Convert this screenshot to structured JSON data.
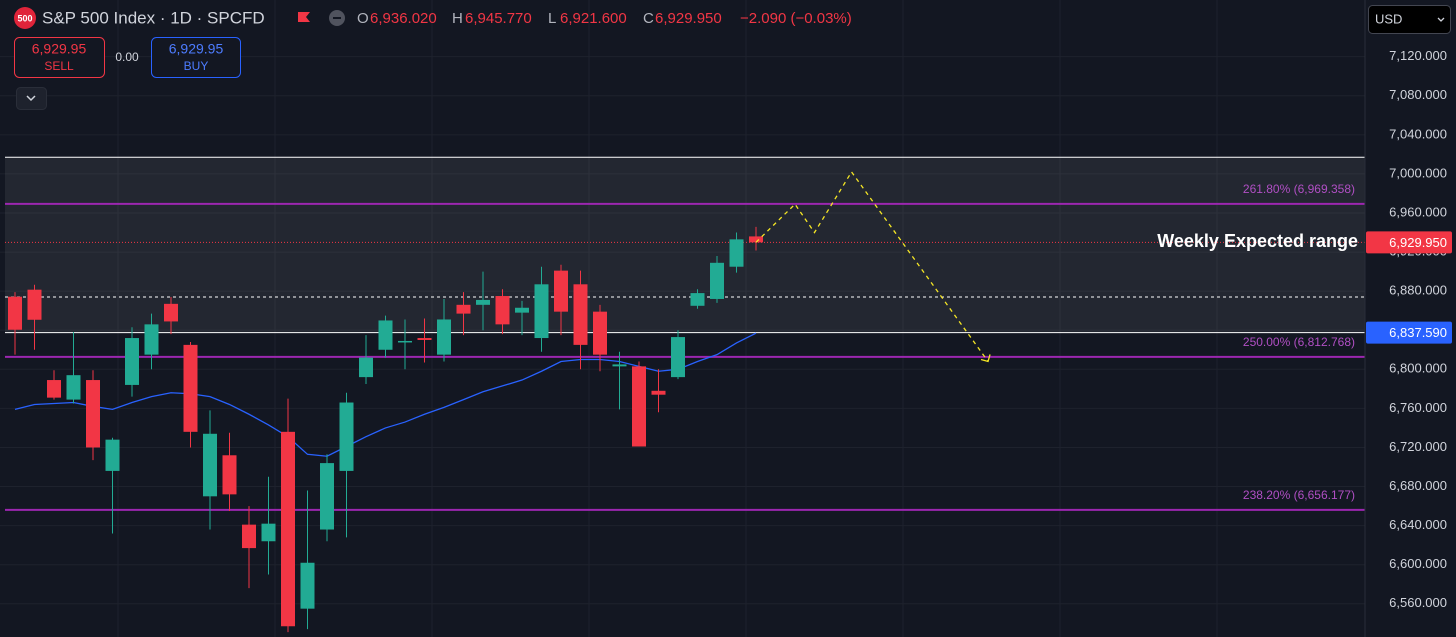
{
  "header": {
    "logo": "500",
    "symbol": "S&P 500 Index · 1D · SPCFD",
    "ohlc": [
      {
        "key": "O",
        "value": "6,936.020"
      },
      {
        "key": "H",
        "value": "6,945.770"
      },
      {
        "key": "L",
        "value": "6,921.600"
      },
      {
        "key": "C",
        "value": "6,929.950"
      }
    ],
    "change": "−2.090 (−0.03%)"
  },
  "trade": {
    "sell_price": "6,929.95",
    "sell": "SELL",
    "spread": "0.00",
    "buy_price": "6,929.95",
    "buy": "BUY"
  },
  "currency": "USD",
  "chart_data": {
    "type": "candlestick",
    "open": [
      6874.3,
      6881.5,
      6789,
      6769,
      6789,
      6696,
      6784,
      6815,
      6867,
      6825,
      6670,
      6712,
      6641,
      6624,
      6736,
      6555,
      6636,
      6696,
      6792,
      6820,
      6828,
      6832,
      6815,
      6866,
      6866,
      6875,
      6858,
      6832,
      6901,
      6887,
      6859,
      6803,
      6803,
      6778,
      6792,
      6865,
      6872,
      6905,
      6936.02
    ],
    "high": [
      6879,
      6886.6,
      6799,
      6838,
      6799,
      6730,
      6843,
      6857,
      6874,
      6828,
      6758,
      6735,
      6660,
      6690,
      6770,
      6676,
      6713,
      6776,
      6835,
      6855,
      6851,
      6852,
      6872,
      6879,
      6900,
      6882,
      6870,
      6905,
      6907,
      6901,
      6866,
      6818,
      6808,
      6800,
      6840,
      6882,
      6916,
      6940,
      6945.77
    ],
    "low": [
      6815,
      6820,
      6769,
      6765,
      6707,
      6632,
      6772,
      6800,
      6836,
      6720,
      6636,
      6655,
      6576,
      6590,
      6531,
      6534,
      6624,
      6628,
      6785,
      6812,
      6800,
      6807,
      6808,
      6835,
      6840,
      6836,
      6835,
      6818,
      6835,
      6800,
      6798,
      6759,
      6721,
      6756,
      6790,
      6862,
      6868,
      6899,
      6921.6
    ],
    "close": [
      6840.5,
      6850.7,
      6771,
      6794,
      6720,
      6728,
      6832,
      6846,
      6849,
      6736,
      6734,
      6672,
      6617,
      6642,
      6537,
      6602,
      6704,
      6766,
      6812,
      6850,
      6829,
      6830,
      6851,
      6857,
      6871,
      6846,
      6863,
      6887,
      6859,
      6825,
      6815,
      6805,
      6721,
      6774,
      6833,
      6878,
      6909,
      6933,
      6929.95
    ],
    "colors": {
      "up": "#22ab94",
      "down": "#f23645"
    },
    "moving_average": {
      "color": "#2962ff",
      "values": [
        6759,
        6764,
        6765,
        6766,
        6762,
        6759,
        6766,
        6772,
        6776,
        6775,
        6772,
        6764,
        6754,
        6743,
        6731,
        6713,
        6711,
        6721,
        6731,
        6740,
        6746,
        6754,
        6761,
        6769,
        6777,
        6783,
        6789,
        6798,
        6808,
        6810,
        6810,
        6808,
        6803,
        6798,
        6800,
        6808,
        6815,
        6827,
        6837
      ]
    },
    "ylim": [
      6526,
      7178
    ],
    "yticks": [
      {
        "value": 6560,
        "label": "6,560.000"
      },
      {
        "value": 6600,
        "label": "6,600.000"
      },
      {
        "value": 6640,
        "label": "6,640.000"
      },
      {
        "value": 6680,
        "label": "6,680.000"
      },
      {
        "value": 6720,
        "label": "6,720.000"
      },
      {
        "value": 6760,
        "label": "6,760.000"
      },
      {
        "value": 6800,
        "label": "6,800.000"
      },
      {
        "value": 6840,
        "label": "6,840.000"
      },
      {
        "value": 6880,
        "label": "6,880.000"
      },
      {
        "value": 6920,
        "label": "6,920.000"
      },
      {
        "value": 6960,
        "label": "6,960.000"
      },
      {
        "value": 7000,
        "label": "7,000.000"
      },
      {
        "value": 7040,
        "label": "7,040.000"
      },
      {
        "value": 7080,
        "label": "7,080.000"
      },
      {
        "value": 7120,
        "label": "7,120.000"
      }
    ],
    "grid": true,
    "levels": [
      {
        "value": 6969.358,
        "label": "261.80% (6,969.358)",
        "color": "#9c27b0"
      },
      {
        "value": 6812.768,
        "label": "250.00% (6,812.768)",
        "color": "#9c27b0"
      },
      {
        "value": 6656.177,
        "label": "238.20% (6,656.177)",
        "color": "#9c27b0"
      }
    ],
    "range": {
      "label": "Weekly Expected range",
      "top": 7017,
      "bottom": 6837.59,
      "bottom_label": "6,837.590",
      "color": "#2962ff"
    },
    "last_price": {
      "value": 6929.95,
      "label": "6,929.950",
      "color": "#f23645"
    },
    "dotted_level": 6874,
    "projection": {
      "color": "#f5e625",
      "x": [
        38,
        40,
        41,
        42.9,
        49.9
      ],
      "values": [
        6930,
        6969,
        6940,
        7002,
        6808
      ]
    }
  }
}
